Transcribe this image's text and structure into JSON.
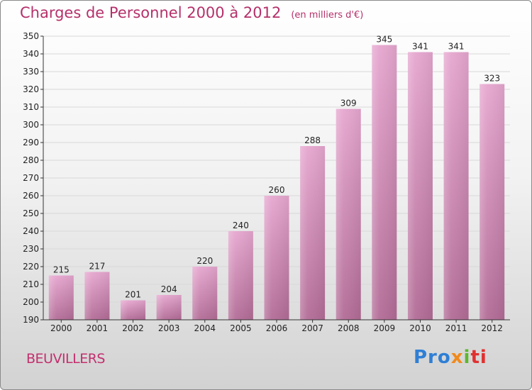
{
  "header": {
    "title": "Charges de Personnel 2000 à 2012",
    "subtitle": "(en milliers d'€)"
  },
  "commune": "BEUVILLERS",
  "logo": {
    "parts": [
      "Pro",
      "x",
      "i",
      "ti"
    ]
  },
  "colors": {
    "bar_top": "#e6a6cf",
    "bar_bottom": "#b26c96",
    "title": "#b5306a"
  },
  "chart_data": {
    "type": "bar",
    "title": "Charges de Personnel 2000 à 2012",
    "subtitle": "(en milliers d'€)",
    "categories": [
      "2000",
      "2001",
      "2002",
      "2003",
      "2004",
      "2005",
      "2006",
      "2007",
      "2008",
      "2009",
      "2010",
      "2011",
      "2012"
    ],
    "values": [
      215,
      217,
      201,
      204,
      220,
      240,
      260,
      288,
      309,
      345,
      341,
      341,
      323
    ],
    "ylim": [
      190,
      350
    ],
    "yticks": [
      190,
      200,
      210,
      220,
      230,
      240,
      250,
      260,
      270,
      280,
      290,
      300,
      310,
      320,
      330,
      340,
      350
    ],
    "grid": true,
    "data_labels": true
  }
}
